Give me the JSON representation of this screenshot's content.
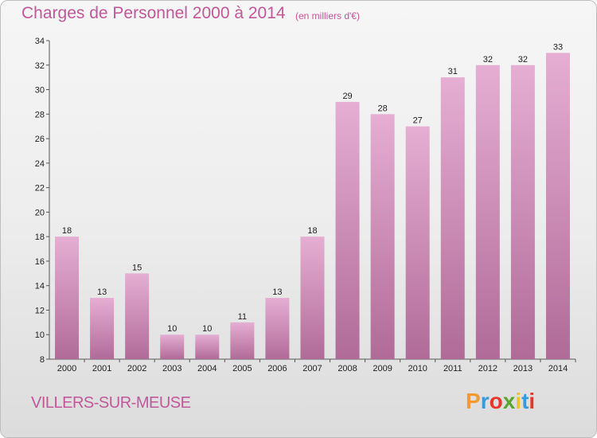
{
  "title": "Charges de Personnel 2000 à 2014",
  "subtitle": "(en milliers d'€)",
  "town": "VILLERS-SUR-MEUSE",
  "logo": {
    "letters": [
      "P",
      "r",
      "o",
      "x",
      "i",
      "t",
      "i"
    ],
    "colors": [
      "#f29a2e",
      "#3a9ad9",
      "#e8362c",
      "#5aa532",
      "#f2c12e",
      "#3a9ad9",
      "#e8362c"
    ]
  },
  "colors": {
    "bar_top": "#e6aed3",
    "bar_bottom": "#b06b98",
    "text": "#c0589a"
  },
  "chart_data": {
    "type": "bar",
    "title": "Charges de Personnel 2000 à 2014",
    "ylabel": "",
    "xlabel": "",
    "categories": [
      "2000",
      "2001",
      "2002",
      "2003",
      "2004",
      "2005",
      "2006",
      "2007",
      "2008",
      "2009",
      "2010",
      "2011",
      "2012",
      "2013",
      "2014"
    ],
    "values": [
      18,
      13,
      15,
      10,
      10,
      11,
      13,
      18,
      29,
      28,
      27,
      31,
      32,
      32,
      33
    ],
    "ylim": [
      8,
      34
    ],
    "yticks": [
      8,
      10,
      12,
      14,
      16,
      18,
      20,
      22,
      24,
      26,
      28,
      30,
      32,
      34
    ],
    "grid": false
  }
}
